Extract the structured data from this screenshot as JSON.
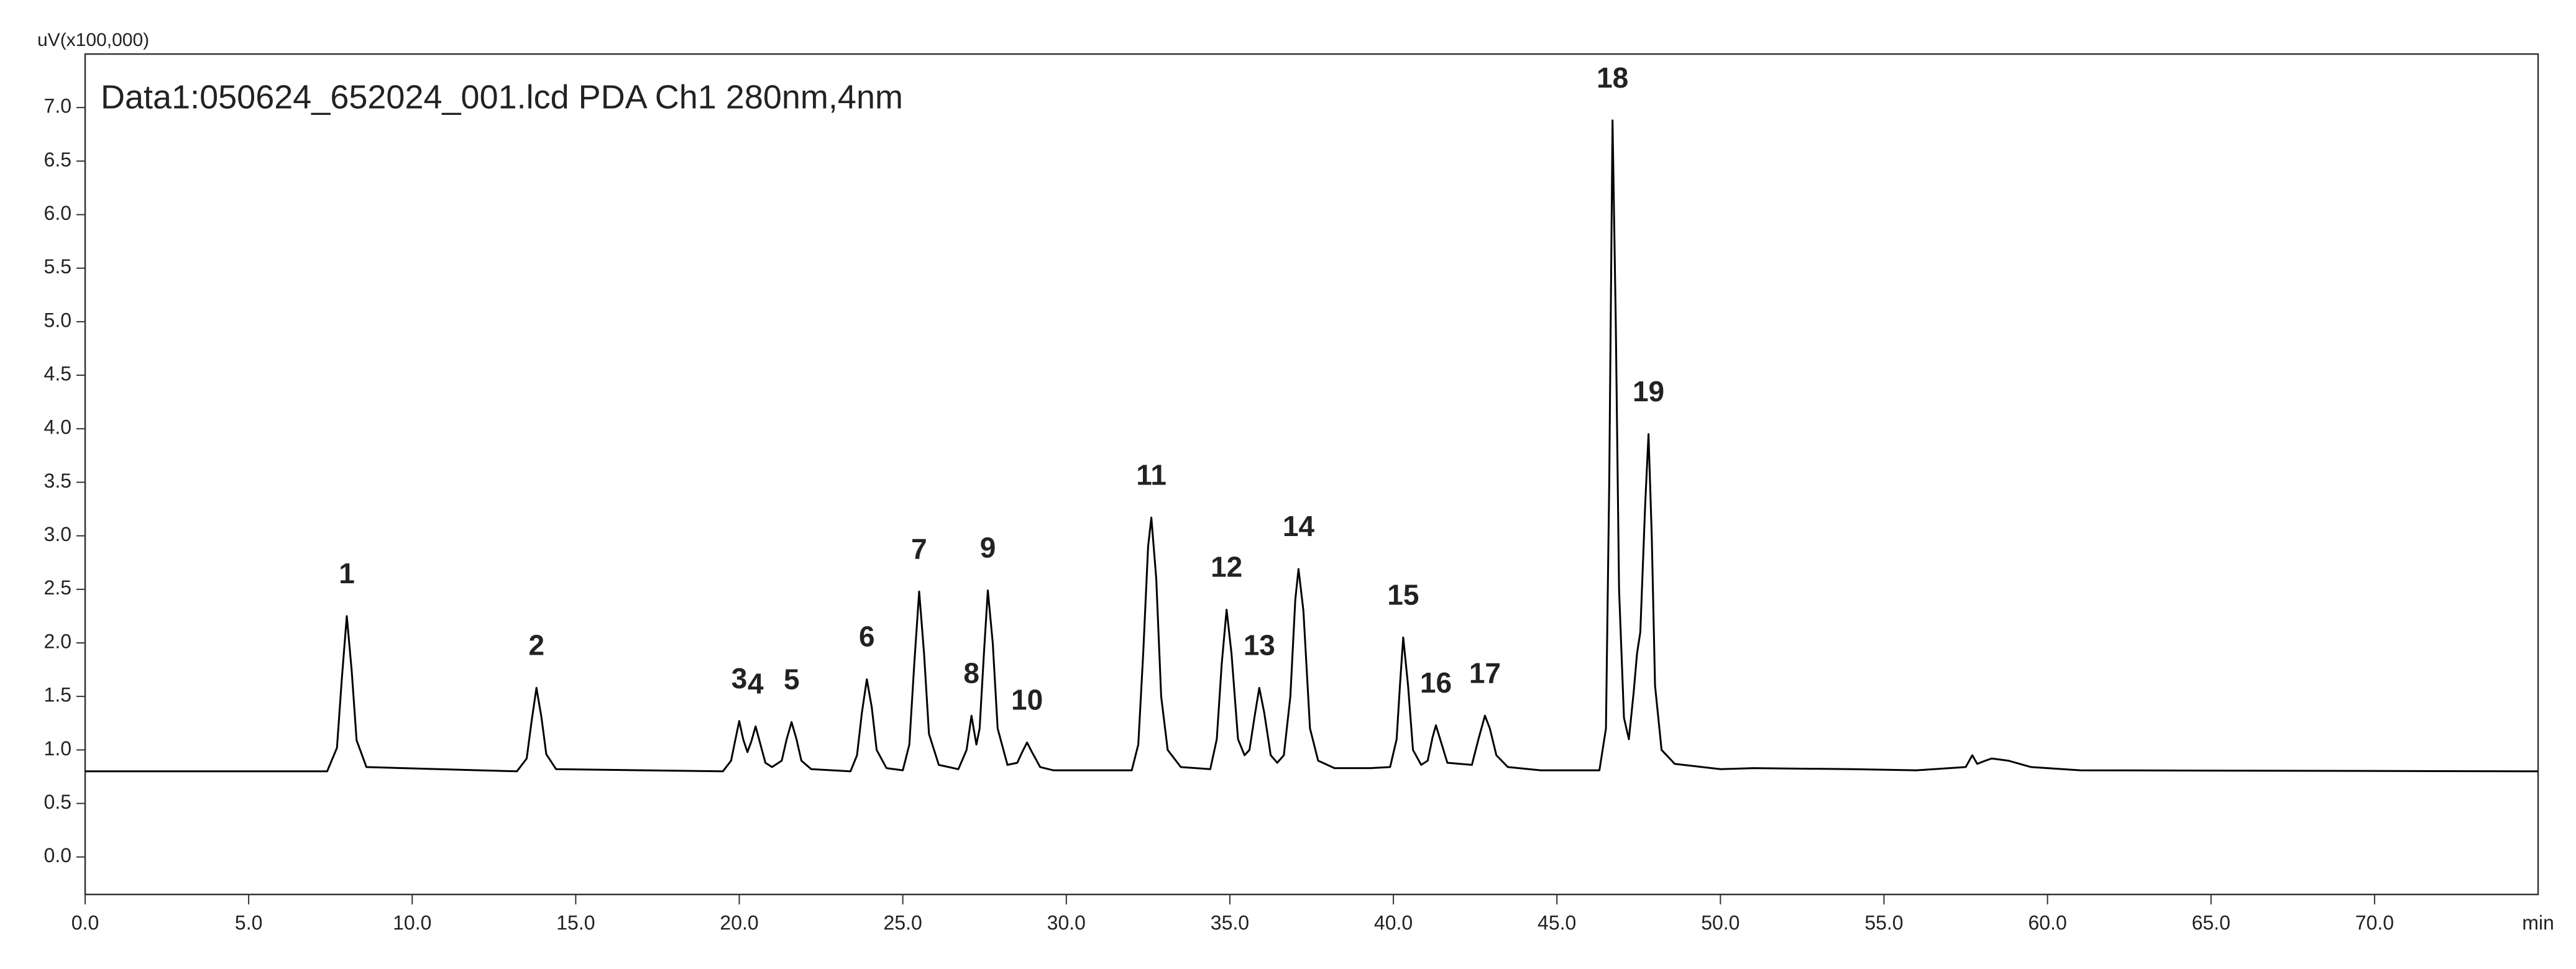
{
  "chart_data": {
    "type": "line",
    "title": "Data1:050624_652024_001.lcd  PDA Ch1 280nm,4nm",
    "y_label": "uV(x100,000)",
    "x_label": "min",
    "color": "#000000",
    "grid": false,
    "xlim": [
      0,
      75
    ],
    "ylim": [
      -0.35,
      7.5
    ],
    "xticks": [
      {
        "value": 0,
        "label": "0.0"
      },
      {
        "value": 5,
        "label": "5.0"
      },
      {
        "value": 10,
        "label": "10.0"
      },
      {
        "value": 15,
        "label": "15.0"
      },
      {
        "value": 20,
        "label": "20.0"
      },
      {
        "value": 25,
        "label": "25.0"
      },
      {
        "value": 30,
        "label": "30.0"
      },
      {
        "value": 35,
        "label": "35.0"
      },
      {
        "value": 40,
        "label": "40.0"
      },
      {
        "value": 45,
        "label": "45.0"
      },
      {
        "value": 50,
        "label": "50.0"
      },
      {
        "value": 55,
        "label": "55.0"
      },
      {
        "value": 60,
        "label": "60.0"
      },
      {
        "value": 65,
        "label": "65.0"
      },
      {
        "value": 70,
        "label": "70.0"
      }
    ],
    "yticks": [
      {
        "value": 0,
        "label": "0.0"
      },
      {
        "value": 0.5,
        "label": "0.5"
      },
      {
        "value": 1,
        "label": "1.0"
      },
      {
        "value": 1.5,
        "label": "1.5"
      },
      {
        "value": 2,
        "label": "2.0"
      },
      {
        "value": 2.5,
        "label": "2.5"
      },
      {
        "value": 3,
        "label": "3.0"
      },
      {
        "value": 3.5,
        "label": "3.5"
      },
      {
        "value": 4,
        "label": "4.0"
      },
      {
        "value": 4.5,
        "label": "4.5"
      },
      {
        "value": 5,
        "label": "5.0"
      },
      {
        "value": 5.5,
        "label": "5.5"
      },
      {
        "value": 6,
        "label": "6.0"
      },
      {
        "value": 6.5,
        "label": "6.5"
      },
      {
        "value": 7,
        "label": "7.0"
      }
    ],
    "x": [
      0,
      7.4,
      7.7,
      7.85,
      8.0,
      8.15,
      8.3,
      8.6,
      13.2,
      13.5,
      13.65,
      13.8,
      13.95,
      14.1,
      14.4,
      19.5,
      19.75,
      19.87,
      20.0,
      20.12,
      20.25,
      20.37,
      20.5,
      20.65,
      20.8,
      21.0,
      21.3,
      21.45,
      21.6,
      21.75,
      21.9,
      22.2,
      23.4,
      23.6,
      23.75,
      23.9,
      24.05,
      24.2,
      24.5,
      25.0,
      25.2,
      25.35,
      25.5,
      25.65,
      25.8,
      26.1,
      26.7,
      26.95,
      27.1,
      27.25,
      27.35,
      27.48,
      27.6,
      27.75,
      27.9,
      28.2,
      28.5,
      28.65,
      28.8,
      28.95,
      29.2,
      29.6,
      32.0,
      32.2,
      32.35,
      32.5,
      32.6,
      32.75,
      32.9,
      33.1,
      33.5,
      34.4,
      34.6,
      34.75,
      34.9,
      35.05,
      35.25,
      35.45,
      35.6,
      35.75,
      35.9,
      36.05,
      36.25,
      36.45,
      36.65,
      36.85,
      37.0,
      37.1,
      37.25,
      37.45,
      37.7,
      38.2,
      39.3,
      39.9,
      40.1,
      40.2,
      40.3,
      40.45,
      40.6,
      40.85,
      41.05,
      41.2,
      41.3,
      41.45,
      41.65,
      42.4,
      42.6,
      42.8,
      42.95,
      43.15,
      43.5,
      44.5,
      46.3,
      46.5,
      46.6,
      46.7,
      46.8,
      46.9,
      47.05,
      47.2,
      47.35,
      47.45,
      47.55,
      47.7,
      47.8,
      47.9,
      48.0,
      48.2,
      48.6,
      50.0,
      51.0,
      54.0,
      56.0,
      57.5,
      57.7,
      57.85,
      58.1,
      58.3,
      58.8,
      59.5,
      61.0,
      75.0
    ],
    "values": [
      0.8,
      0.8,
      1.02,
      1.67,
      2.25,
      1.74,
      1.09,
      0.84,
      0.8,
      0.92,
      1.27,
      1.58,
      1.31,
      0.96,
      0.82,
      0.8,
      0.9,
      1.08,
      1.27,
      1.1,
      0.98,
      1.08,
      1.22,
      1.05,
      0.88,
      0.84,
      0.9,
      1.1,
      1.26,
      1.1,
      0.9,
      0.82,
      0.8,
      0.95,
      1.35,
      1.66,
      1.4,
      1.0,
      0.83,
      0.81,
      1.05,
      1.8,
      2.48,
      1.9,
      1.15,
      0.86,
      0.82,
      1.0,
      1.32,
      1.05,
      1.2,
      1.9,
      2.49,
      2.0,
      1.2,
      0.86,
      0.88,
      0.98,
      1.07,
      0.98,
      0.84,
      0.81,
      0.81,
      1.05,
      1.9,
      2.9,
      3.17,
      2.6,
      1.5,
      1.0,
      0.84,
      0.82,
      1.1,
      1.8,
      2.31,
      1.9,
      1.1,
      0.95,
      1.0,
      1.3,
      1.58,
      1.35,
      0.95,
      0.88,
      0.95,
      1.5,
      2.4,
      2.69,
      2.3,
      1.2,
      0.9,
      0.83,
      0.83,
      0.84,
      1.1,
      1.6,
      2.05,
      1.6,
      1.0,
      0.86,
      0.9,
      1.12,
      1.23,
      1.08,
      0.88,
      0.86,
      1.1,
      1.32,
      1.2,
      0.95,
      0.84,
      0.81,
      0.81,
      1.2,
      3.5,
      6.88,
      5.0,
      2.5,
      1.3,
      1.1,
      1.55,
      1.9,
      2.1,
      3.3,
      3.95,
      3.0,
      1.6,
      1.0,
      0.87,
      0.82,
      0.83,
      0.82,
      0.81,
      0.84,
      0.95,
      0.87,
      0.9,
      0.92,
      0.9,
      0.84,
      0.81,
      0.8
    ],
    "peaks": [
      {
        "label": "1",
        "x": 8.0,
        "y": 2.25
      },
      {
        "label": "2",
        "x": 13.8,
        "y": 1.58
      },
      {
        "label": "3",
        "x": 20.0,
        "y": 1.27
      },
      {
        "label": "4",
        "x": 20.5,
        "y": 1.22
      },
      {
        "label": "5",
        "x": 21.6,
        "y": 1.26
      },
      {
        "label": "6",
        "x": 23.9,
        "y": 1.66
      },
      {
        "label": "7",
        "x": 25.5,
        "y": 2.48
      },
      {
        "label": "8",
        "x": 27.1,
        "y": 1.32
      },
      {
        "label": "9",
        "x": 27.6,
        "y": 2.49
      },
      {
        "label": "10",
        "x": 28.8,
        "y": 1.07
      },
      {
        "label": "11",
        "x": 32.6,
        "y": 3.17
      },
      {
        "label": "12",
        "x": 34.9,
        "y": 2.31
      },
      {
        "label": "13",
        "x": 35.9,
        "y": 1.58
      },
      {
        "label": "14",
        "x": 37.1,
        "y": 2.69
      },
      {
        "label": "15",
        "x": 40.3,
        "y": 2.05
      },
      {
        "label": "16",
        "x": 41.3,
        "y": 1.23
      },
      {
        "label": "17",
        "x": 42.8,
        "y": 1.32
      },
      {
        "label": "18",
        "x": 46.7,
        "y": 6.88
      },
      {
        "label": "19",
        "x": 47.8,
        "y": 3.95
      }
    ]
  }
}
